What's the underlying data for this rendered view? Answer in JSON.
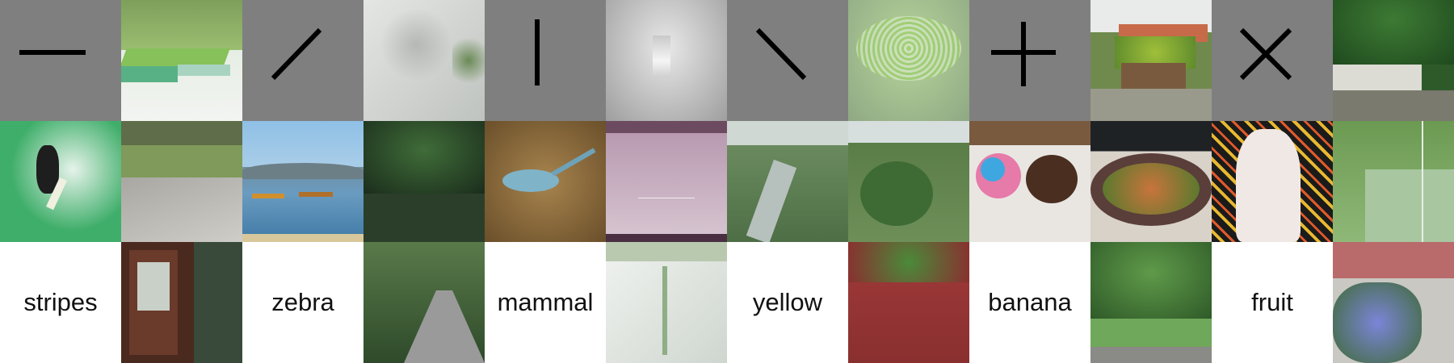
{
  "symbols": [
    "horizontal-line",
    "diagonal-slash",
    "vertical-line",
    "diagonal-backslash",
    "plus",
    "x-cross"
  ],
  "words": [
    "stripes",
    "zebra",
    "mammal",
    "yellow",
    "banana",
    "fruit"
  ],
  "photos": {
    "r1c2": "green hedge with lawn platform",
    "r1c4": "white wall with leaf shadows",
    "r1c6": "grey room with small lit box",
    "r1c8": "green mesh texture",
    "r1c10": "planter box with flowers by white fence",
    "r1c12": "trees above white fence",
    "r2c1": "surfer on green wave",
    "r2c2": "stone path by grass",
    "r2c3": "boats on lake with hills",
    "r2c4": "dark trees behind fence",
    "r2c5": "small blue bird on dirt",
    "r2c6": "empty purple indoor court",
    "r2c7": "river valley with trees",
    "r2c8": "green bushes on hillside",
    "r2c9": "donuts on paper",
    "r2c10": "salad plate on table",
    "r2c11": "painting of two figures with floral background",
    "r2c12": "green tennis court",
    "r3c2": "dark wooden door with windows",
    "r3c4": "paved path through forest",
    "r3c6": "white wall with ivy",
    "r3c8": "red wall with ivy",
    "r3c10": "large tree over lawn",
    "r3c12": "garden with blue flowers by house"
  },
  "colors": {
    "symbol_bg": "#7f7f7f",
    "symbol_stroke": "#000000",
    "word_bg": "#ffffff"
  }
}
